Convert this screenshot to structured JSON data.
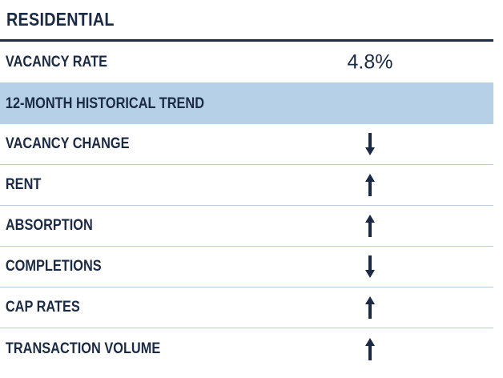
{
  "header": {
    "title": "RESIDENTIAL"
  },
  "vacancy": {
    "label": "VACANCY RATE",
    "value": "4.8%"
  },
  "section": {
    "label": "12-MONTH HISTORICAL TREND"
  },
  "trends": [
    {
      "label": "VACANCY CHANGE",
      "direction": "down",
      "icon": "arrow-down-icon"
    },
    {
      "label": "RENT",
      "direction": "up",
      "icon": "arrow-up-icon"
    },
    {
      "label": "ABSORPTION",
      "direction": "up",
      "icon": "arrow-up-icon"
    },
    {
      "label": "COMPLETIONS",
      "direction": "down",
      "icon": "arrow-down-icon"
    },
    {
      "label": "CAP RATES",
      "direction": "up",
      "icon": "arrow-up-icon"
    },
    {
      "label": "TRANSACTION VOLUME",
      "direction": "up",
      "icon": "arrow-up-icon"
    }
  ],
  "colors": {
    "text": "#1b2a45",
    "section_background": "#b6d0e8",
    "row_divider": "#b9cde3",
    "header_rule": "#1b2a45"
  }
}
